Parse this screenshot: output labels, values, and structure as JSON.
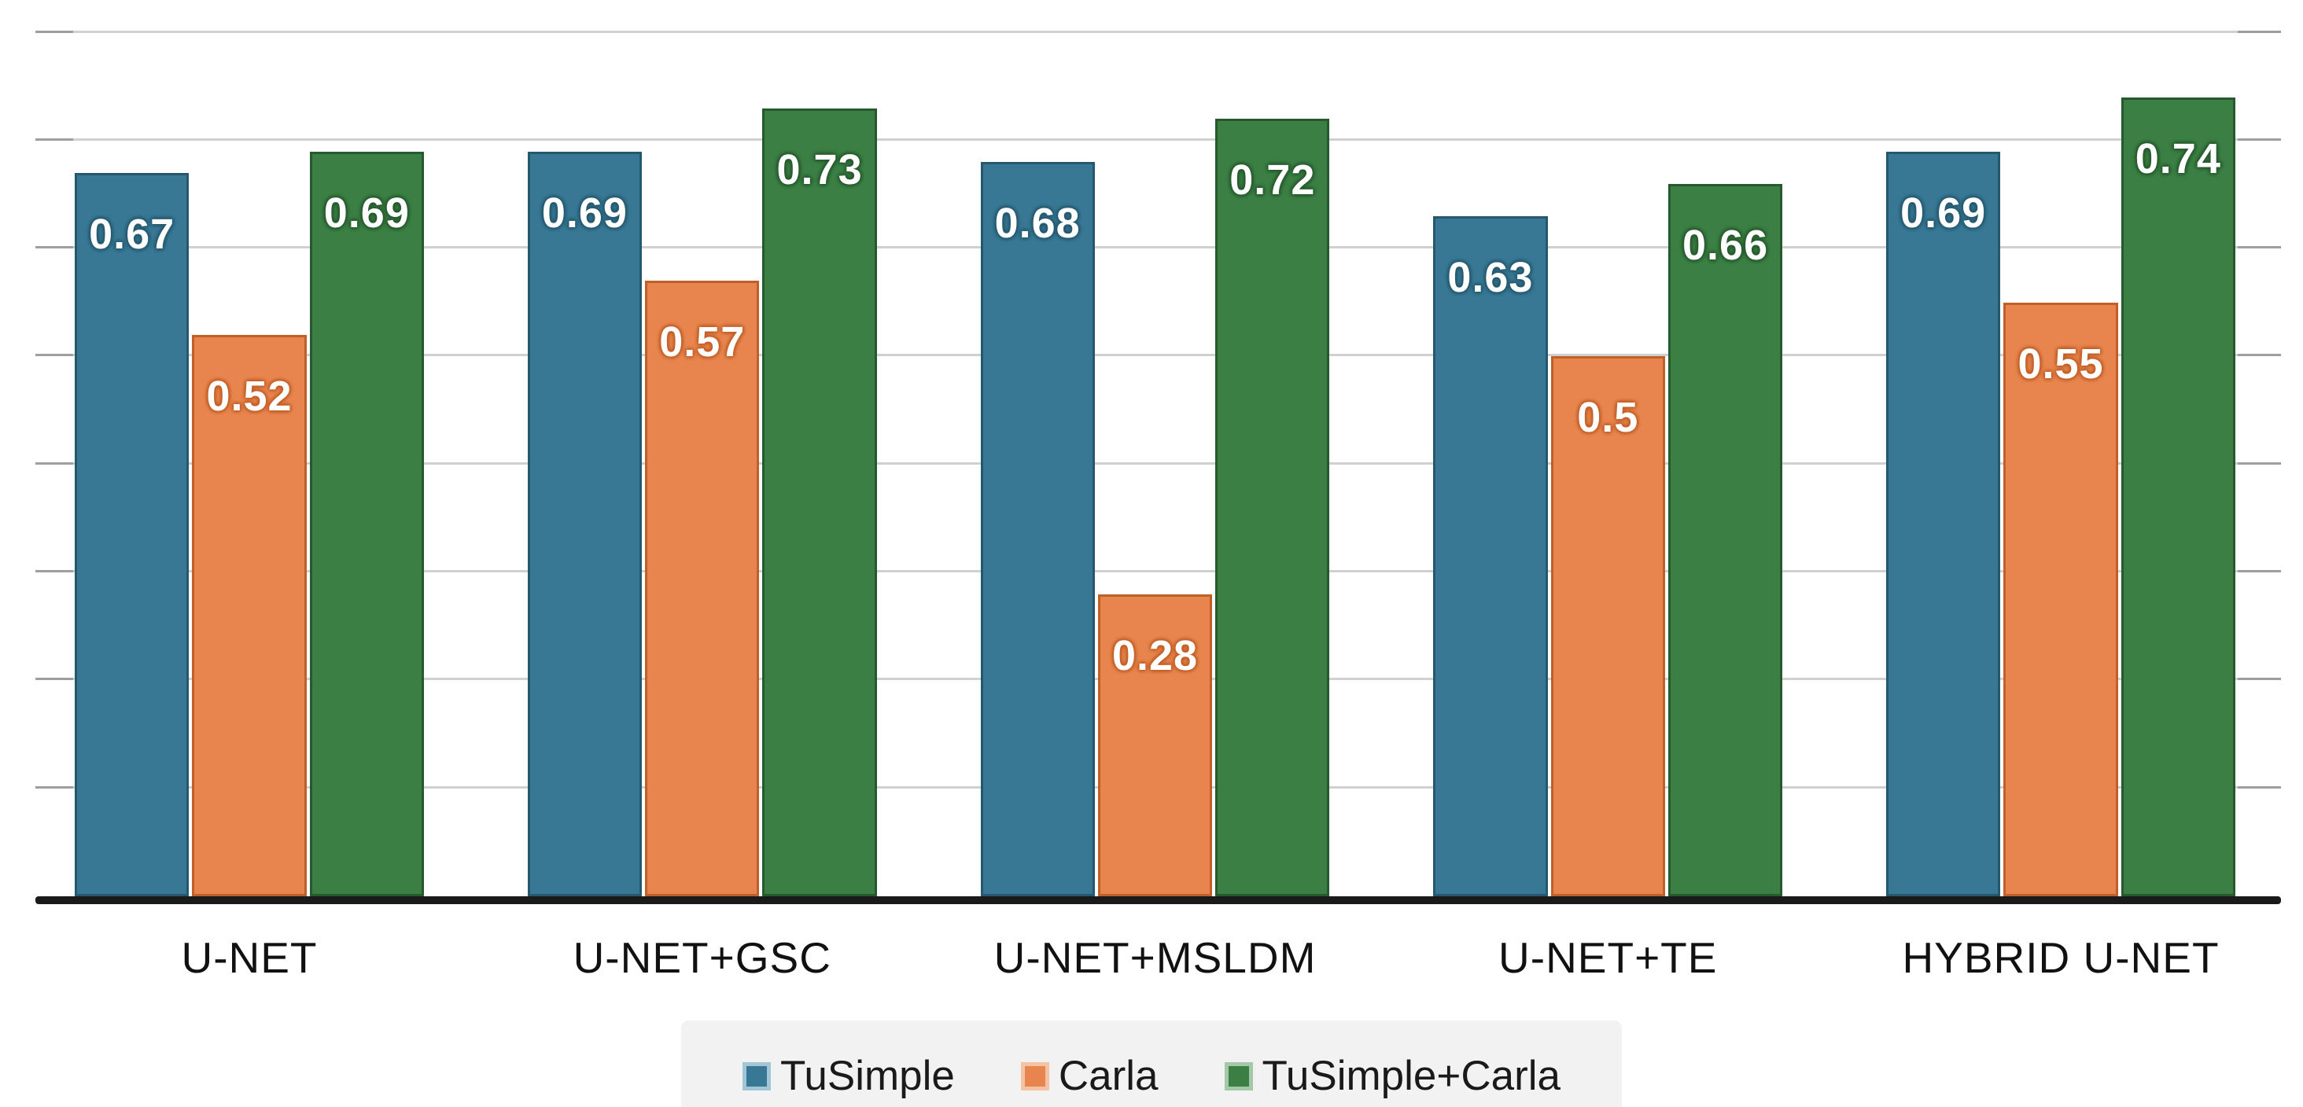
{
  "chart_data": {
    "type": "bar",
    "title": "",
    "xlabel": "",
    "ylabel": "",
    "categories": [
      "U-NET",
      "U-NET+GSC",
      "U-NET+MSLDM",
      "U-NET+TE",
      "HYBRID U-NET"
    ],
    "series": [
      {
        "name": "TuSimple",
        "values": [
          0.67,
          0.69,
          0.68,
          0.63,
          0.69
        ],
        "color": "#387894",
        "border_color": "#25586e",
        "swatch_border": "#a3c6d6"
      },
      {
        "name": "Carla",
        "values": [
          0.52,
          0.57,
          0.28,
          0.5,
          0.55
        ],
        "color": "#e8854f",
        "border_color": "#c05f27",
        "swatch_border": "#f3c3a3"
      },
      {
        "name": "TuSimple+Carla",
        "values": [
          0.69,
          0.73,
          0.72,
          0.66,
          0.74
        ],
        "color": "#3b7f44",
        "border_color": "#27592e",
        "swatch_border": "#a4c9a9"
      }
    ],
    "value_labels": "inside-end",
    "value_label_color": "#ffffff",
    "ylim": [
      0,
      0.8
    ],
    "gridline_step": 0.1,
    "grid": "horizontal",
    "legend_position": "bottom"
  },
  "colors": {
    "background": "#ffffff",
    "gridline": "#d0d0d0",
    "tick": "#9e9e9e",
    "axis_line": "#1a1a1a",
    "legend_background": "#f2f2f2",
    "category_text": "#111111"
  }
}
